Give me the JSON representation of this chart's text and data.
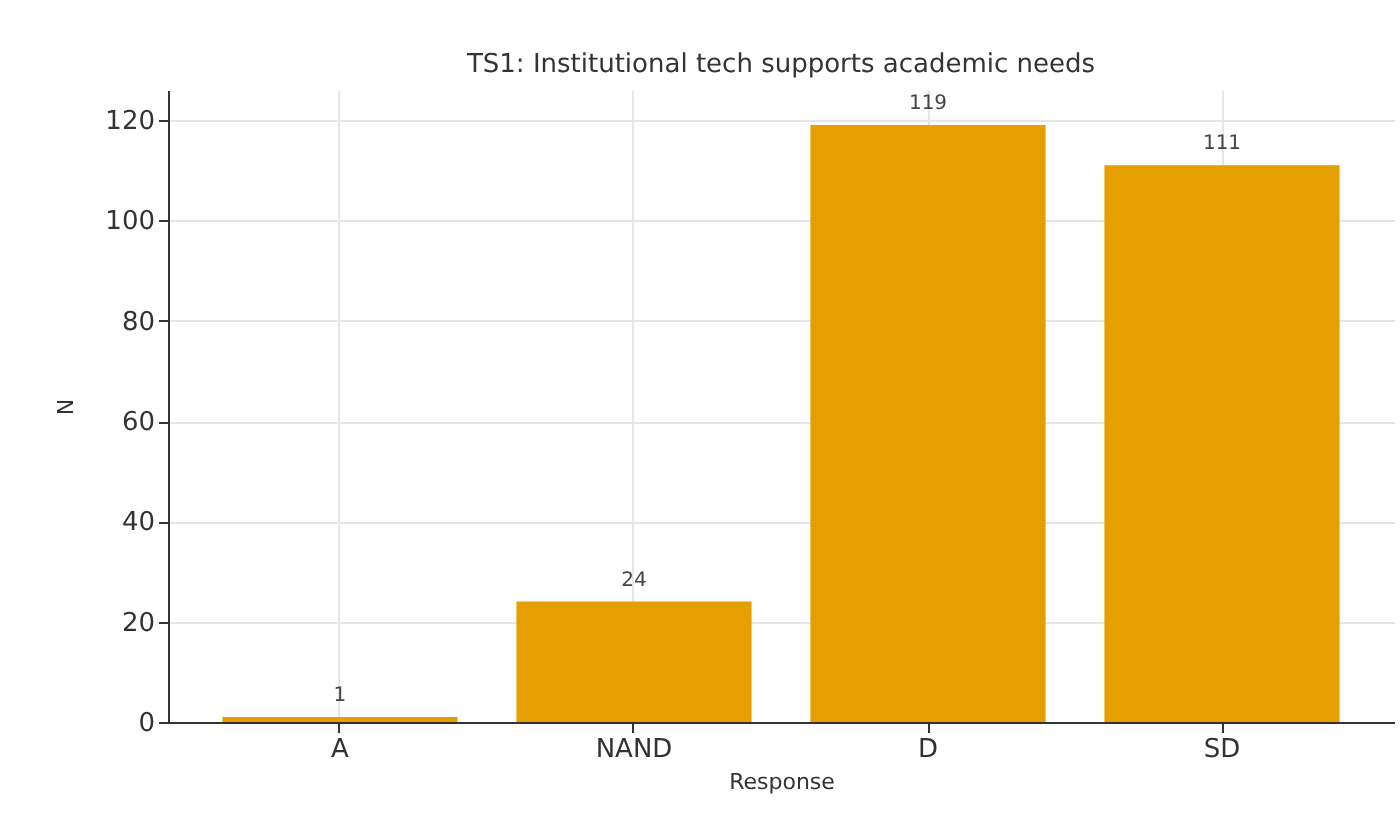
{
  "chart_data": {
    "type": "bar",
    "title": "TS1: Institutional tech supports academic needs",
    "xlabel": "Response",
    "ylabel": "N",
    "categories": [
      "A",
      "NAND",
      "D",
      "SD"
    ],
    "values": [
      1,
      24,
      119,
      111
    ],
    "color": "#e69f00",
    "ylim": [
      0,
      126
    ],
    "yticks": [
      0,
      20,
      40,
      60,
      80,
      100,
      120
    ],
    "grid": true,
    "data_labels": true
  }
}
